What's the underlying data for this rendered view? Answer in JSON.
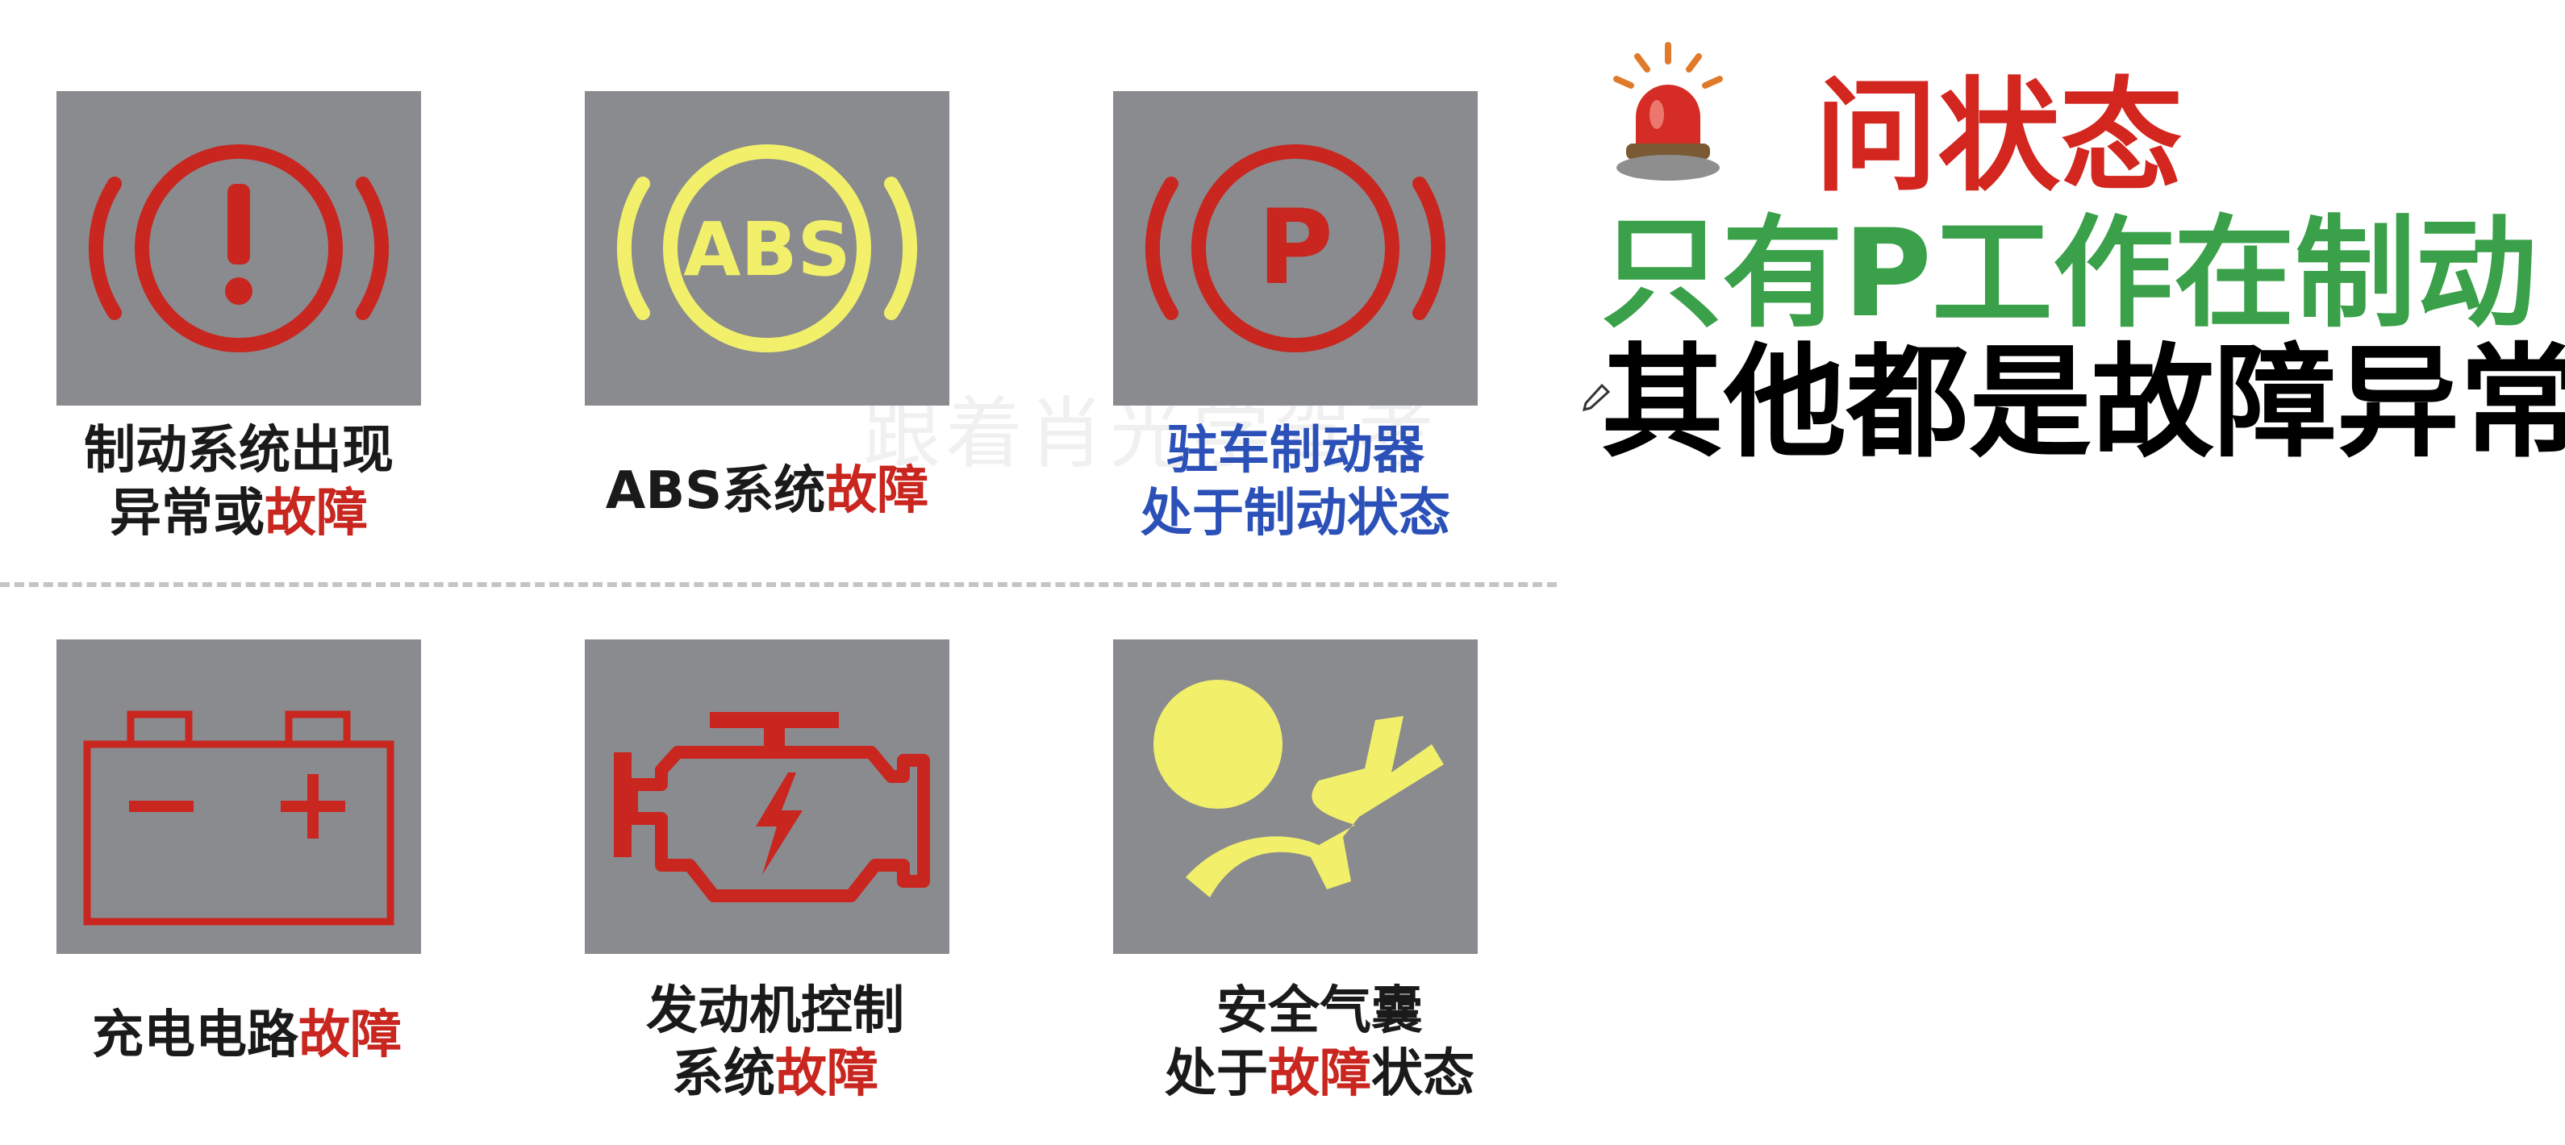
{
  "watermark": "跟着肖光学驾考",
  "side": {
    "question": "问状态",
    "line1": "只有P工作在制动",
    "line2": "其他都是故障异常"
  },
  "cards": [
    {
      "icon": "brake-system-warning-icon",
      "line1_a": "制动系统出现",
      "line2_a": "异常或",
      "line2_b": "故障"
    },
    {
      "icon": "abs-warning-icon",
      "icon_text": "ABS",
      "line1_a": "ABS系统",
      "line1_b": "故障"
    },
    {
      "icon": "parking-brake-icon",
      "icon_text": "P",
      "line1_a": "驻车制动器",
      "line2_a": "处于制动状态"
    },
    {
      "icon": "battery-charging-icon",
      "line1_a": "充电电路",
      "line1_b": "故障"
    },
    {
      "icon": "engine-check-icon",
      "line1_a": "发动机控制",
      "line2_a": "系统",
      "line2_b": "故障"
    },
    {
      "icon": "airbag-icon",
      "line1_a": "安全气囊",
      "line2_a": "处于",
      "line2_b": "故障",
      "line2_c": "状态"
    }
  ],
  "colors": {
    "tile_bg": "#8a8b8f",
    "warning_red": "#c8261f",
    "warning_yellow": "#f2f06a",
    "accent_red": "#d2261f",
    "accent_green": "#3aa049",
    "caption_blue": "#2b50b8"
  }
}
